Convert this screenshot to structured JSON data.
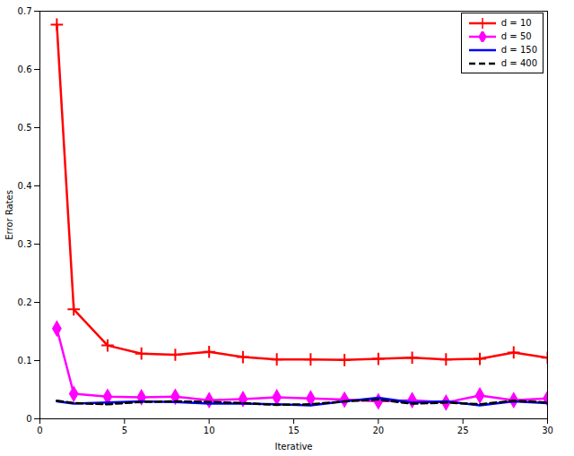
{
  "chart_data": {
    "type": "line",
    "x_label": "Iterative",
    "y_label": "Error Rates",
    "x": [
      1,
      2,
      4,
      6,
      8,
      10,
      12,
      14,
      16,
      18,
      20,
      22,
      24,
      26,
      28,
      30
    ],
    "series": [
      {
        "name": "d = 10",
        "color": "#ff0000",
        "marker": "plus",
        "line_style": "solid",
        "values": [
          0.677,
          0.188,
          0.126,
          0.112,
          0.11,
          0.115,
          0.106,
          0.102,
          0.102,
          0.101,
          0.103,
          0.105,
          0.102,
          0.103,
          0.114,
          0.105
        ]
      },
      {
        "name": "d = 50",
        "color": "#ff00ff",
        "marker": "diamond",
        "line_style": "solid",
        "values": [
          0.155,
          0.043,
          0.038,
          0.037,
          0.038,
          0.032,
          0.034,
          0.037,
          0.035,
          0.033,
          0.03,
          0.032,
          0.028,
          0.04,
          0.032,
          0.035
        ]
      },
      {
        "name": "d = 150",
        "color": "#0000ff",
        "marker": "none",
        "line_style": "solid",
        "values": [
          0.03,
          0.026,
          0.028,
          0.03,
          0.029,
          0.026,
          0.026,
          0.025,
          0.023,
          0.03,
          0.036,
          0.028,
          0.03,
          0.023,
          0.03,
          0.027
        ]
      },
      {
        "name": "d = 400",
        "color": "#000000",
        "marker": "none",
        "line_style": "dashed",
        "values": [
          0.031,
          0.027,
          0.025,
          0.029,
          0.03,
          0.029,
          0.027,
          0.024,
          0.025,
          0.03,
          0.033,
          0.026,
          0.028,
          0.025,
          0.031,
          0.028
        ]
      }
    ],
    "xlim": [
      0,
      30
    ],
    "xticks": [
      0,
      5,
      10,
      15,
      20,
      25,
      30
    ],
    "ylim": [
      0,
      0.7
    ],
    "yticks": [
      0,
      0.1,
      0.2,
      0.3,
      0.4,
      0.5,
      0.6,
      0.7
    ],
    "grid": false,
    "legend": "top-right"
  }
}
